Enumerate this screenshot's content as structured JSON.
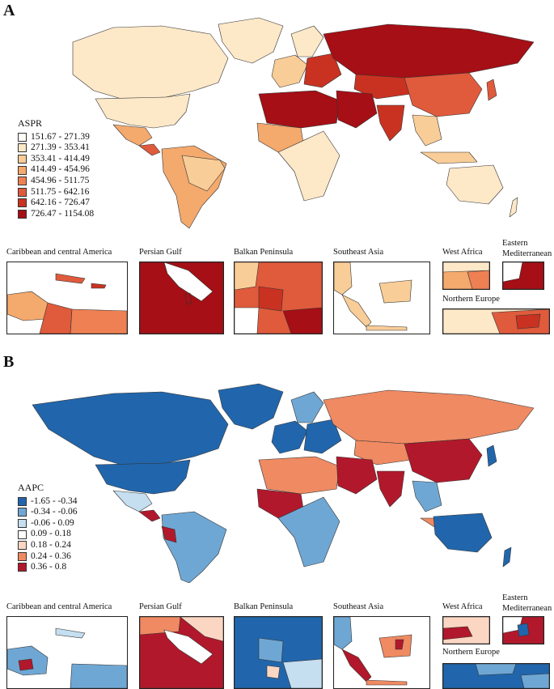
{
  "panels": [
    {
      "label": "A",
      "legend": {
        "title": "ASPR",
        "items": [
          {
            "range": "151.67 - 271.39",
            "color": "#fefcf5"
          },
          {
            "range": "271.39 - 353.41",
            "color": "#fde8c8"
          },
          {
            "range": "353.41 - 414.49",
            "color": "#f9cd97"
          },
          {
            "range": "414.49 - 454.96",
            "color": "#f4a96d"
          },
          {
            "range": "454.96 - 511.75",
            "color": "#ee8054"
          },
          {
            "range": "511.75 - 642.16",
            "color": "#e05a3c"
          },
          {
            "range": "642.16 - 726.47",
            "color": "#c93221"
          },
          {
            "range": "726.47 - 1154.08",
            "color": "#a50f15"
          }
        ]
      },
      "insets": [
        {
          "title": "Caribbean and central America"
        },
        {
          "title": "Persian Gulf"
        },
        {
          "title": "Balkan Peninsula"
        },
        {
          "title": "Southeast Asia"
        },
        {
          "title": "West Africa"
        },
        {
          "title": "Eastern\nMediterranean"
        },
        {
          "title": "Northern Europe"
        }
      ]
    },
    {
      "label": "B",
      "legend": {
        "title": "AAPC",
        "items": [
          {
            "range": "-1.65 - -0.34",
            "color": "#2166ac"
          },
          {
            "range": "-0.34 - -0.06",
            "color": "#6fa7d4"
          },
          {
            "range": "-0.06 - 0.09",
            "color": "#c5def0"
          },
          {
            "range": "0.09 - 0.18",
            "color": "#ffffff"
          },
          {
            "range": "0.18 - 0.24",
            "color": "#fbd6c2"
          },
          {
            "range": "0.24 - 0.36",
            "color": "#ef8a62"
          },
          {
            "range": "0.36 - 0.8",
            "color": "#b2182b"
          }
        ]
      },
      "insets": [
        {
          "title": "Caribbean and central America"
        },
        {
          "title": "Persian Gulf"
        },
        {
          "title": "Balkan Peninsula"
        },
        {
          "title": "Southeast Asia"
        },
        {
          "title": "West Africa"
        },
        {
          "title": "Eastern\nMediterranean"
        },
        {
          "title": "Northern Europe"
        }
      ]
    }
  ]
}
